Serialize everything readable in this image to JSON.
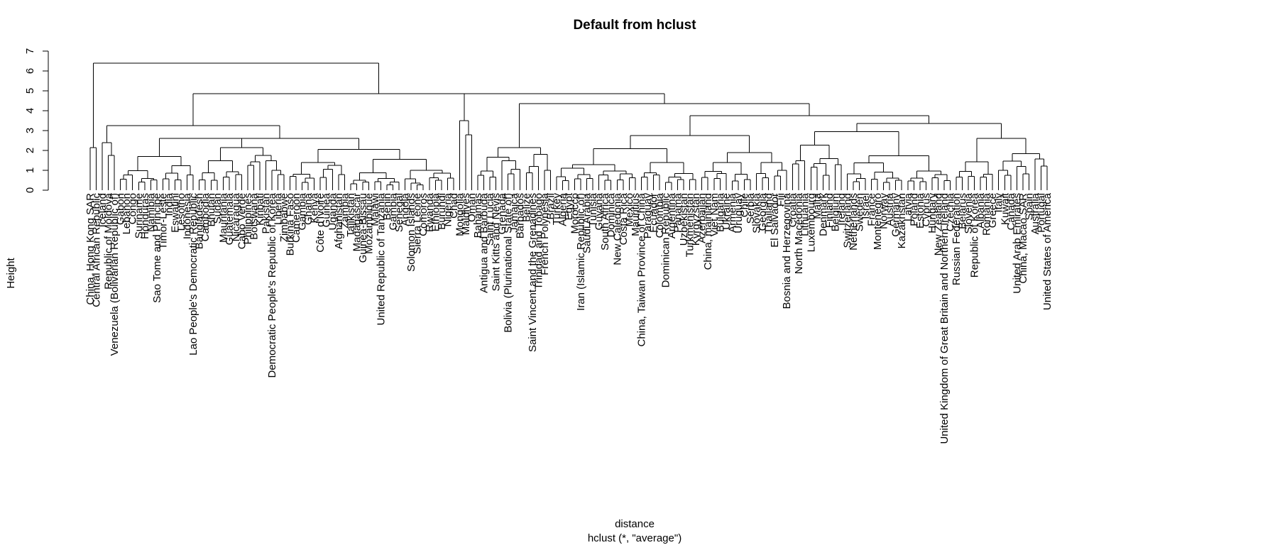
{
  "chart_data": {
    "type": "dendrogram",
    "title": "Default from hclust",
    "xlabel": "distance",
    "sub": "hclust (*, \"average\")",
    "ylabel": "Height",
    "ylim": [
      0,
      7
    ],
    "y_ticks": [
      0,
      1,
      2,
      3,
      4,
      5,
      6,
      7
    ],
    "leaves": [
      "China, Hong Kong SAR",
      "Central African Republic",
      "Iceland",
      "Republic of Moldova",
      "Venezuela (Bolivarian Republic of)",
      "Gabon",
      "Lebanon",
      "Congo",
      "Suriname",
      "Honduras",
      "Namibia",
      "Sao Tome and Principe",
      "Timor-Leste",
      "India",
      "Eswatini",
      "Lesotho",
      "Indonesia",
      "Lao People's Democratic Republic",
      "Bangladesh",
      "Cambodia",
      "Bhutan",
      "Sudan",
      "Mauritania",
      "Guatemala",
      "Nicaragua",
      "Cabo Verde",
      "Philippines",
      "Botswana",
      "Kiribati",
      "Pakistan",
      "Democratic People's Republic of Korea",
      "Liberia",
      "Zimbabwe",
      "Burkina Faso",
      "Cameroon",
      "Gambia",
      "Ghana",
      "Kenya",
      "Côte d'Ivoire",
      "Guinea",
      "Uganda",
      "Afghanistan",
      "Zambia",
      "Tajikistan",
      "Madagascar",
      "Guinea-Bissau",
      "Mozambique",
      "Malawi",
      "United Republic of Tanzania",
      "Benin",
      "Gambia",
      "Senegal",
      "Angola",
      "Solomon Islands",
      "Sierra Leone",
      "Comoros",
      "Rwanda",
      "Ethiopia",
      "Burundi",
      "Nigeria",
      "Chad",
      "Mongolia",
      "Maldives",
      "Oman",
      "Bahamas",
      "Antigua and Barbuda",
      "Saint Lucia",
      "Saint Kitts and Nevis",
      "Grenada",
      "Bolivia (Plurinational State of)",
      "Jamaica",
      "Barbados",
      "Belize",
      "Saint Vincent and the Grenadines",
      "Trinidad and Tobago",
      "French Polynesia",
      "Brazil",
      "Turkey",
      "Algeria",
      "Egypt",
      "Morocco",
      "Iran (Islamic Republic of)",
      "Saudi Arabia",
      "Tunisia",
      "Guyana",
      "South Africa",
      "Dominica",
      "New Caledonia",
      "Costa Rica",
      "Mexico",
      "Mauritius",
      "China, Taiwan Province of China",
      "Paraguay",
      "Ecuador",
      "Colombia",
      "Dominican Republic",
      "Argentina",
      "Panama",
      "Uzbekistan",
      "Turkmenistan",
      "Kyrgyzstan",
      "Azerbaijan",
      "China, mainland",
      "Viet Nam",
      "Bulgaria",
      "Ukraine",
      "Armenia",
      "Uruguay",
      "Chile",
      "Serbia",
      "Slovakia",
      "Georgia",
      "Thailand",
      "El Salvador",
      "Fiji",
      "Bosnia and Herzegovina",
      "Croatia",
      "North Macedonia",
      "Lithuania",
      "Luxembourg",
      "Malta",
      "Denmark",
      "Finland",
      "Belgium",
      "Ireland",
      "Switzerland",
      "Netherlands",
      "Sweden",
      "Israel",
      "France",
      "Montenegro",
      "Norway",
      "Austria",
      "Germany",
      "Kazakhstan",
      "Latvia",
      "Poland",
      "Estonia",
      "Cyprus",
      "Hungary",
      "New Zealand",
      "United Kingdom of Great Britain and Northern Ireland",
      "Czechia",
      "Russian Federation",
      "Belarus",
      "Slovenia",
      "Republic of Korea",
      "Albania",
      "Romania",
      "Greece",
      "Italy",
      "Kuwait",
      "Canada",
      "United Arab Emirates",
      "China, Macao SAR",
      "Spain",
      "Australia",
      "Portugal",
      "United States of America"
    ],
    "root_height": 6.4
  }
}
